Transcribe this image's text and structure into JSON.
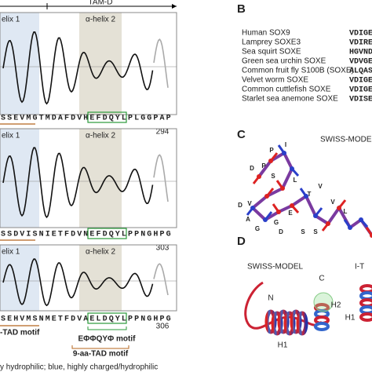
{
  "panel_a": {
    "header": "TAM-D",
    "plots": [
      {
        "helix1": "elix 1",
        "helix2": "α-helix 2",
        "sequence": [
          "S",
          "S",
          "E",
          "V",
          "M",
          "G",
          "T",
          "M",
          "D",
          "A",
          "F",
          "D",
          "V",
          "H",
          "E",
          "F",
          "D",
          "Q",
          "Y",
          "L",
          "P",
          "L",
          "G",
          "G",
          "P",
          "A",
          "P"
        ],
        "end_number": 294
      },
      {
        "helix1": "elix 1",
        "helix2": "α-helix 2",
        "sequence": [
          "S",
          "S",
          "D",
          "V",
          "I",
          "S",
          "N",
          "I",
          "E",
          "T",
          "F",
          "D",
          "V",
          "N",
          "E",
          "F",
          "D",
          "Q",
          "Y",
          "L",
          "P",
          "P",
          "N",
          "G",
          "H",
          "P",
          "G"
        ],
        "end_number": 303
      },
      {
        "helix1": "elix 1",
        "helix2": "α-helix 2",
        "sequence": [
          "S",
          "E",
          "H",
          "V",
          "M",
          "S",
          "N",
          "M",
          "E",
          "T",
          "F",
          "D",
          "V",
          "A",
          "E",
          "L",
          "D",
          "Q",
          "Y",
          "L",
          "P",
          "P",
          "N",
          "G",
          "H",
          "P",
          "G"
        ],
        "end_number": 306
      }
    ],
    "motifs": [
      "-TAD motif",
      "EΦΦQYΦ motif",
      "9-aa-TAD motif"
    ],
    "legend": "y hydrophilic; blue, highly charged/hydrophilic"
  },
  "panel_b": {
    "label": "B",
    "species": [
      {
        "name": "Human SOX9",
        "sequence": "VDIGELSSDV"
      },
      {
        "name": "Lamprey SOXE3",
        "sequence": "VDIRELSSEV"
      },
      {
        "name": "Sea squirt SOXE",
        "sequence": "HGVNDLLSDV"
      },
      {
        "name": "Green sea urchin SOXE",
        "sequence": "VDVGELSSDV"
      },
      {
        "name": "Common fruit fly S100B (SOXE)",
        "sequence": "ALQASEALNY"
      },
      {
        "name": "Velvet worm SOXE",
        "sequence": "VDIGELSSDV"
      },
      {
        "name": "Common cuttlefish SOXE",
        "sequence": "VDIGELSTDV"
      },
      {
        "name": "Starlet sea anemone SOXE",
        "sequence": "VDISELSSDV"
      }
    ]
  },
  "panel_c": {
    "label": "C",
    "title": "SWISS-MODEL",
    "residues": [
      "P",
      "I",
      "D",
      "P",
      "S",
      "L",
      "V",
      "T",
      "D",
      "A",
      "V",
      "G",
      "D",
      "E",
      "V",
      "G",
      "S",
      "S",
      "L"
    ]
  },
  "panel_d": {
    "label": "D",
    "left_title": "SWISS-MODEL",
    "right_title": "I-T",
    "labels": [
      "N",
      "C",
      "H2",
      "H1",
      "H1"
    ]
  }
}
